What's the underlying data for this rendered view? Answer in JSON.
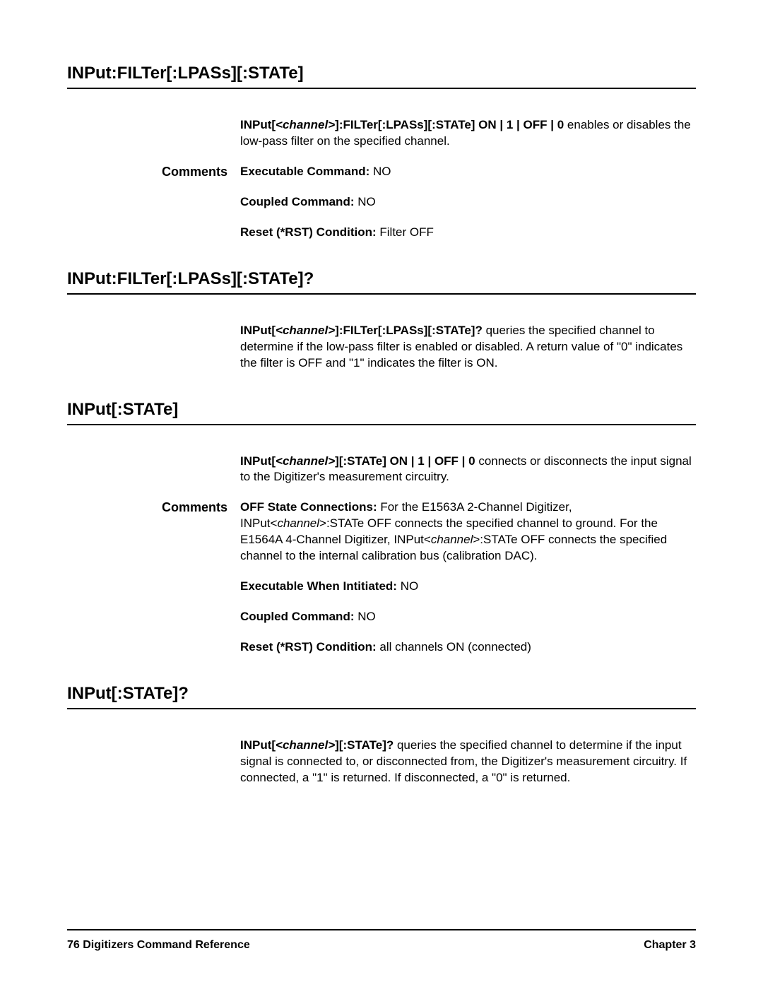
{
  "sections": [
    {
      "title": "INPut:FILTer[:LPASs][:STATe]",
      "desc": {
        "bold_prefix": "INPut[",
        "italic": "<channel>",
        "bold_suffix": "]:FILTer[:LPASs][:STATe] ON | 1 | OFF | 0",
        "rest": " enables or disables the low-pass filter on the specified channel."
      },
      "comments_label": "Comments",
      "comments": [
        {
          "bold": "Executable Command:  ",
          "plain": "NO"
        },
        {
          "bold": "Coupled Command:  ",
          "plain": "NO"
        },
        {
          "bold": "Reset (*RST)  Condition:  ",
          "plain": "Filter OFF"
        }
      ]
    },
    {
      "title": "INPut:FILTer[:LPASs][:STATe]?",
      "desc": {
        "bold_prefix": "INPut[",
        "italic": "<channel>",
        "bold_suffix": "]:FILTer[:LPASs][:STATe]?",
        "rest": " queries the specified channel to determine if the low-pass filter is enabled or disabled.  A return value of \"0\" indicates the filter is OFF and \"1\" indicates the filter is ON."
      }
    },
    {
      "title": "INPut[:STATe]",
      "desc": {
        "bold_prefix": "INPut[",
        "italic": "<channel>",
        "bold_suffix": "][:STATe]    ON | 1 | OFF | 0",
        "rest": " connects or disconnects the input signal to the Digitizer's measurement circuitry."
      },
      "comments_label": "Comments",
      "off_state": {
        "bold": "OFF State Connections: ",
        "p1_a": "For the E1563A 2-Channel Digitizer, INPut<",
        "p1_i1": "channel",
        "p1_b": ">:STATe  OFF connects the specified channel to ground. For the E1564A 4-Channel Digitizer, INPut<",
        "p1_i2": "channel",
        "p1_c": ">:STATe  OFF connects the specified channel to the internal calibration bus (calibration DAC)."
      },
      "comments": [
        {
          "bold": "Executable When Intitiated:  ",
          "plain": "NO"
        },
        {
          "bold": "Coupled Command:   ",
          "plain": "NO"
        },
        {
          "bold": "Reset (*RST)  Condition:  ",
          "plain": "all channels ON (connected)"
        }
      ]
    },
    {
      "title": "INPut[:STATe]?",
      "desc": {
        "bold_prefix": "INPut[",
        "italic": "<channel>",
        "bold_suffix": "][:STATe]?",
        "rest": " queries the specified channel to determine if the input signal is connected to, or disconnected from, the Digitizer's measurement circuitry.  If connected, a \"1\" is returned. If disconnected, a \"0\" is returned."
      }
    }
  ],
  "footer": {
    "left": "76 Digitizers Command Reference",
    "right": "Chapter 3"
  }
}
